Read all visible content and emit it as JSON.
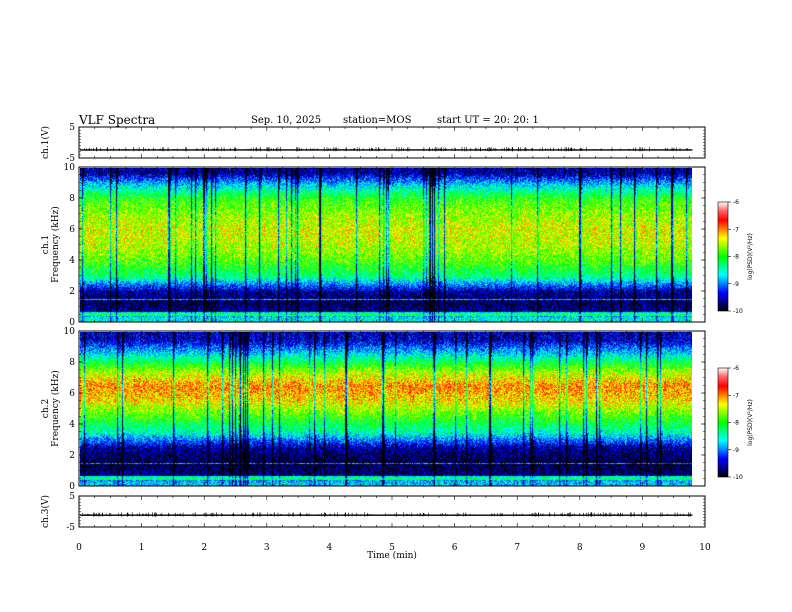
{
  "header": {
    "title": "VLF Spectra",
    "date": "Sep. 10, 2025",
    "station": "station=MOS",
    "start": "start UT =  20: 20: 1"
  },
  "chart_data": {
    "type": "heatmap",
    "x_axis": {
      "label": "Time (min)",
      "range": [
        0,
        10
      ],
      "ticks": [
        "0",
        "1",
        "2",
        "3",
        "4",
        "5",
        "6",
        "7",
        "8",
        "9",
        "10"
      ]
    },
    "panels": [
      {
        "id": "ch1_waveform",
        "type": "line",
        "ylabel": "ch.1(V)",
        "ylim": [
          -5,
          5
        ],
        "yticks": [
          "5",
          "-5"
        ],
        "baseline_value": -2.4,
        "data_end_min": 9.8
      },
      {
        "id": "ch1_spectrogram",
        "type": "heatmap",
        "ylabel": "ch.1\nFrequency (kHz)",
        "ylim": [
          0,
          10
        ],
        "yticks": [
          "0",
          "2",
          "4",
          "6",
          "8",
          "10"
        ],
        "intensity_profile": {
          "freq_khz": [
            0.3,
            0.7,
            1.2,
            2,
            3,
            4,
            5,
            6,
            7,
            8,
            9,
            9.7
          ],
          "log_psd": [
            -8.6,
            -9.6,
            -9.8,
            -9.6,
            -8.3,
            -7.8,
            -7.5,
            -7.4,
            -7.6,
            -7.9,
            -8.8,
            -9.6
          ]
        },
        "data_end_min": 9.8
      },
      {
        "id": "ch2_spectrogram",
        "type": "heatmap",
        "ylabel": "ch.2\nFrequency (kHz)",
        "ylim": [
          0,
          10
        ],
        "yticks": [
          "0",
          "2",
          "4",
          "6",
          "8",
          "10"
        ],
        "intensity_profile": {
          "freq_khz": [
            0.3,
            0.8,
            1.5,
            2.5,
            3.5,
            4.5,
            5.5,
            6.5,
            7.5,
            8.5,
            9.5
          ],
          "log_psd": [
            -8.8,
            -9.7,
            -9.9,
            -9.6,
            -8.5,
            -7.9,
            -7.3,
            -7.0,
            -7.6,
            -8.6,
            -9.5
          ]
        },
        "data_end_min": 9.8
      },
      {
        "id": "ch3_waveform",
        "type": "line",
        "ylabel": "ch.3(V)",
        "ylim": [
          -5,
          5
        ],
        "yticks": [
          "5",
          "-5"
        ],
        "baseline_value": -1.2,
        "data_end_min": 9.8
      }
    ],
    "colorbar": {
      "label": "log(PSD)(V²/Hz)",
      "range": [
        -10,
        -6
      ],
      "ticks": [
        "-6",
        "-7",
        "-8",
        "-9",
        "-10"
      ],
      "colors": [
        "#000000",
        "#00008b",
        "#0000ff",
        "#0080ff",
        "#00ffff",
        "#00ff80",
        "#00ff00",
        "#80ff00",
        "#ffff00",
        "#ff8000",
        "#ff0000",
        "#ff6060",
        "#ffffff"
      ]
    }
  }
}
